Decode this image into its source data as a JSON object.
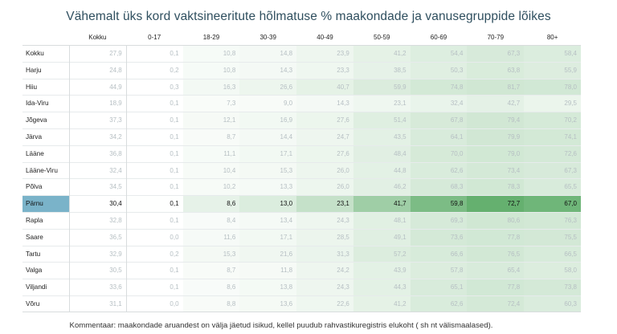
{
  "chart_data": {
    "type": "heatmap",
    "title": "Vähemalt üks kord vaktsineeritute hõlmatuse % maakondade ja vanusegruppide lõikes",
    "columns": [
      "Kokku",
      "0-17",
      "18-29",
      "30-39",
      "40-49",
      "50-59",
      "60-69",
      "70-79",
      "80+"
    ],
    "rows": [
      {
        "label": "Kokku",
        "values": [
          "27,9",
          "0,1",
          "10,8",
          "14,8",
          "23,9",
          "41,2",
          "54,4",
          "67,3",
          "58,4"
        ]
      },
      {
        "label": "Harju",
        "values": [
          "24,8",
          "0,2",
          "10,8",
          "14,3",
          "23,3",
          "38,5",
          "50,3",
          "63,8",
          "55,9"
        ]
      },
      {
        "label": "Hiiu",
        "values": [
          "44,9",
          "0,3",
          "16,3",
          "26,6",
          "40,7",
          "59,9",
          "74,8",
          "81,7",
          "78,0"
        ]
      },
      {
        "label": "Ida-Viru",
        "values": [
          "18,9",
          "0,1",
          "7,3",
          "9,0",
          "14,3",
          "23,1",
          "32,4",
          "42,7",
          "29,5"
        ]
      },
      {
        "label": "Jõgeva",
        "values": [
          "37,3",
          "0,1",
          "12,1",
          "16,9",
          "27,6",
          "51,4",
          "67,8",
          "79,4",
          "70,2"
        ]
      },
      {
        "label": "Järva",
        "values": [
          "34,2",
          "0,1",
          "8,7",
          "14,4",
          "24,7",
          "43,5",
          "64,1",
          "79,9",
          "74,1"
        ]
      },
      {
        "label": "Lääne",
        "values": [
          "36,8",
          "0,1",
          "11,1",
          "17,1",
          "27,6",
          "48,4",
          "70,0",
          "79,0",
          "72,6"
        ]
      },
      {
        "label": "Lääne-Viru",
        "values": [
          "32,4",
          "0,1",
          "10,4",
          "15,3",
          "26,0",
          "44,8",
          "62,6",
          "73,4",
          "67,3"
        ]
      },
      {
        "label": "Põlva",
        "values": [
          "34,5",
          "0,1",
          "10,2",
          "13,3",
          "26,0",
          "46,2",
          "68,3",
          "78,3",
          "65,5"
        ]
      },
      {
        "label": "Pärnu",
        "values": [
          "30,4",
          "0,1",
          "8,6",
          "13,0",
          "23,1",
          "41,7",
          "59,8",
          "72,7",
          "67,0"
        ]
      },
      {
        "label": "Rapla",
        "values": [
          "32,8",
          "0,1",
          "8,4",
          "13,4",
          "24,3",
          "48,1",
          "69,3",
          "80,6",
          "76,3"
        ]
      },
      {
        "label": "Saare",
        "values": [
          "36,5",
          "0,0",
          "11,6",
          "17,1",
          "28,5",
          "49,1",
          "73,6",
          "77,8",
          "75,5"
        ]
      },
      {
        "label": "Tartu",
        "values": [
          "32,9",
          "0,2",
          "15,3",
          "21,6",
          "31,3",
          "57,2",
          "66,6",
          "76,5",
          "66,5"
        ]
      },
      {
        "label": "Valga",
        "values": [
          "30,5",
          "0,1",
          "8,7",
          "11,8",
          "24,2",
          "43,9",
          "57,8",
          "65,4",
          "58,0"
        ]
      },
      {
        "label": "Viljandi",
        "values": [
          "33,6",
          "0,1",
          "8,6",
          "13,8",
          "24,3",
          "44,3",
          "65,1",
          "77,8",
          "73,8"
        ]
      },
      {
        "label": "Võru",
        "values": [
          "31,1",
          "0,0",
          "8,8",
          "13,6",
          "22,6",
          "41,2",
          "62,6",
          "72,4",
          "60,3"
        ]
      }
    ],
    "highlighted_row": "Pärnu",
    "color_scale": {
      "low": "#ffffff",
      "high": "#54a860",
      "max_value": 82
    }
  },
  "footer": "Kommentaar: maakondade aruandest on välja jäetud isikud, kellel puudub rahvastikuregistris elukoht ( sh nt välismaalased)."
}
